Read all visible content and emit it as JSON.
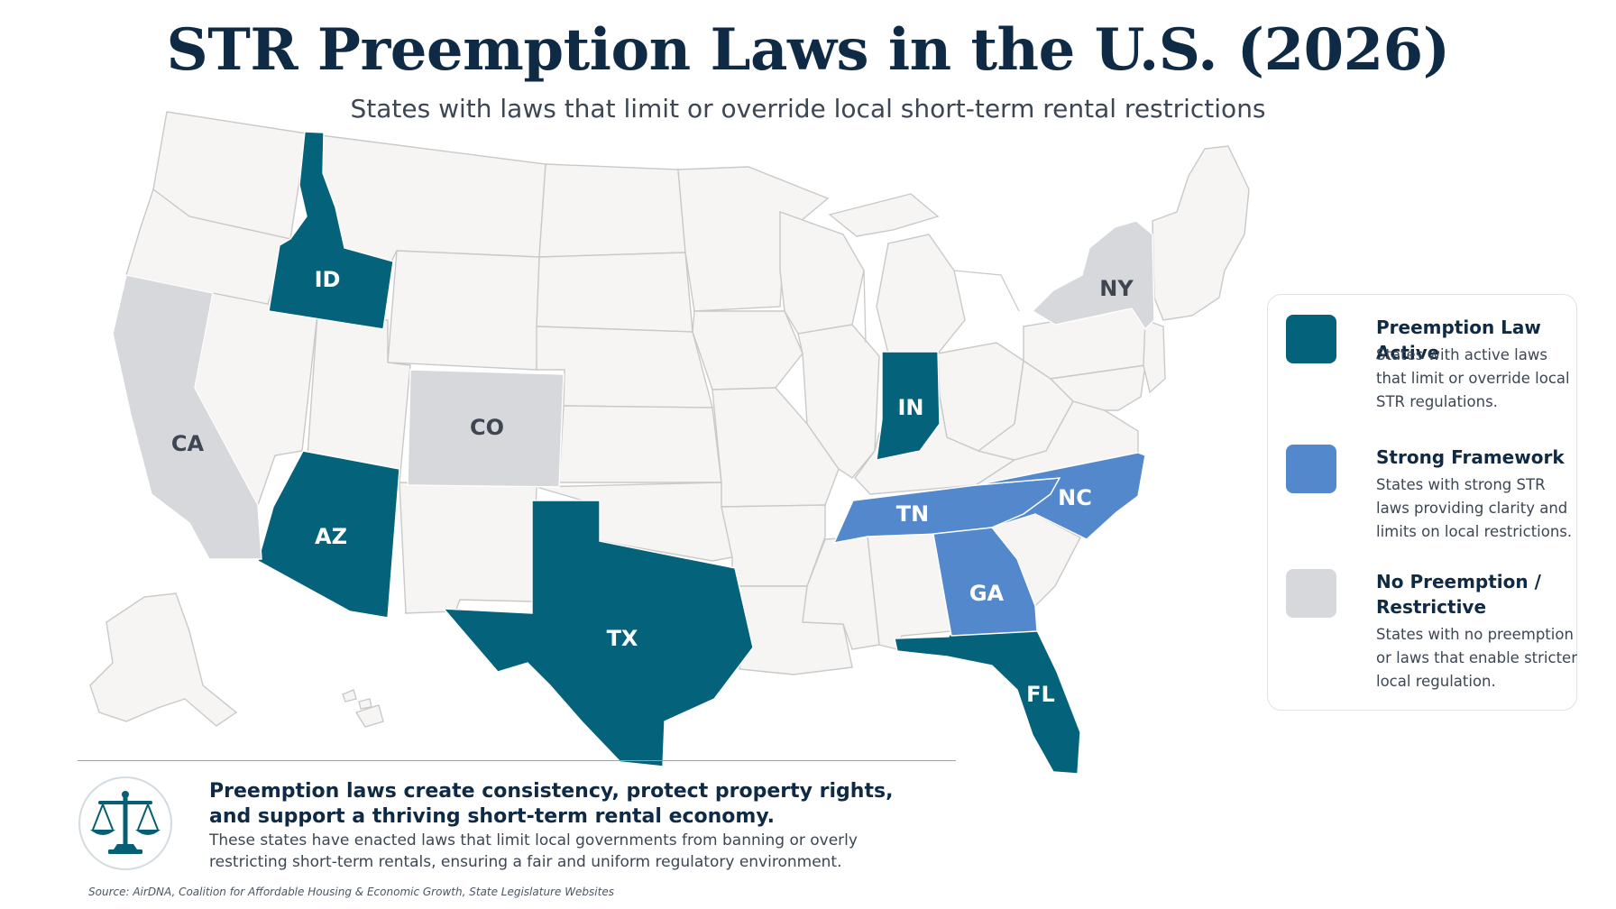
{
  "title": "STR Preemption Laws in the U.S. (2026)",
  "subtitle": "States with laws that limit or override local short-term rental restrictions",
  "map": {
    "colors": {
      "preemption_active": "#04627a",
      "strong_framework": "#5389cc",
      "no_preemption": "#d6d8dc",
      "unclassified": "#f6f5f3"
    },
    "states": [
      {
        "abbr": "ID",
        "category": "preemption_active"
      },
      {
        "abbr": "AZ",
        "category": "preemption_active"
      },
      {
        "abbr": "TX",
        "category": "preemption_active"
      },
      {
        "abbr": "IN",
        "category": "preemption_active"
      },
      {
        "abbr": "FL",
        "category": "preemption_active"
      },
      {
        "abbr": "TN",
        "category": "strong_framework"
      },
      {
        "abbr": "NC",
        "category": "strong_framework"
      },
      {
        "abbr": "GA",
        "category": "strong_framework"
      },
      {
        "abbr": "CA",
        "category": "no_preemption"
      },
      {
        "abbr": "CO",
        "category": "no_preemption"
      },
      {
        "abbr": "NY",
        "category": "no_preemption"
      }
    ]
  },
  "legend": [
    {
      "key": "preemption_active",
      "title": "Preemption Law Active",
      "description": "States with active laws that limit or override local STR regulations.",
      "color": "#04627a"
    },
    {
      "key": "strong_framework",
      "title": "Strong Framework",
      "description": "States with strong STR laws providing clarity and limits on local restrictions.",
      "color": "#5389cc"
    },
    {
      "key": "no_preemption",
      "title": "No Preemption / Restrictive",
      "description": "States with no preemption or laws that enable stricter local regulation.",
      "color": "#d6d8dc"
    }
  ],
  "callout": {
    "icon": "scales-of-justice-icon",
    "headline": "Preemption laws create consistency, protect property rights, and support a thriving short-term rental economy.",
    "body": "These states have enacted laws that limit local governments from banning or overly restricting short-term rentals, ensuring a fair and uniform regulatory environment."
  },
  "source": "Source: AirDNA, Coalition for Affordable Housing & Economic Growth, State Legislature Websites"
}
